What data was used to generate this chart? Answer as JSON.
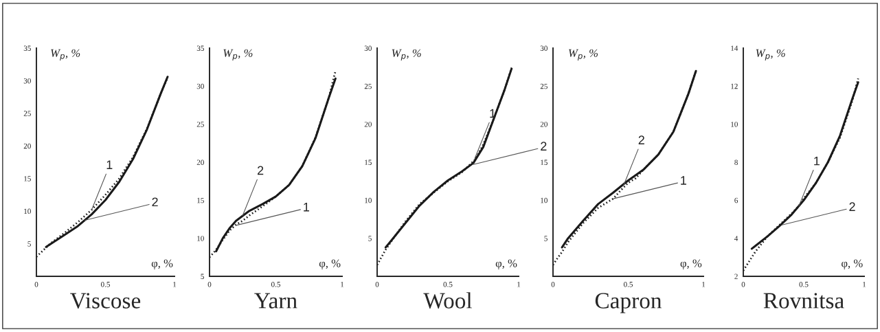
{
  "chart_data": [
    {
      "type": "line",
      "title": "Viscose",
      "xlabel": "φ, %",
      "ylabel": "W$_{p}$, %",
      "xlim": [
        0,
        1
      ],
      "xticks": [
        0,
        0.5,
        1
      ],
      "ylim": [
        0,
        35
      ],
      "yticks": [
        5,
        10,
        15,
        20,
        25,
        30,
        35
      ],
      "grid": false,
      "legend": false,
      "series": [
        {
          "color": "#1a1a1a",
          "line_style": "solid",
          "x": [
            0.07,
            0.2,
            0.3,
            0.4,
            0.5,
            0.6,
            0.7,
            0.8,
            0.9,
            0.95
          ],
          "values": [
            4.5,
            6.3,
            7.7,
            9.5,
            11.7,
            14.5,
            18,
            22.5,
            28,
            30.6
          ]
        },
        {
          "color": "#1a1a1a",
          "line_style": "dotted",
          "x": [
            0.0,
            0.05,
            0.1,
            0.2,
            0.3,
            0.4,
            0.5,
            0.6,
            0.7,
            0.8,
            0.9,
            0.95
          ],
          "values": [
            3,
            4,
            5,
            6.6,
            8.3,
            10.2,
            12.5,
            15,
            18.3,
            22.6,
            28,
            30.5
          ]
        }
      ],
      "annotations": [
        {
          "text": "1",
          "x": 0.4,
          "y": 10.2
        },
        {
          "text": "2",
          "x": 0.35,
          "y": 8.6
        }
      ]
    },
    {
      "type": "line",
      "title": "Yarn",
      "xlabel": "φ, %",
      "ylabel": "W$_{p}$, %",
      "xlim": [
        0,
        1
      ],
      "xticks": [
        0,
        0.5,
        1
      ],
      "ylim": [
        5,
        35
      ],
      "yticks": [
        5,
        10,
        15,
        20,
        25,
        30,
        35
      ],
      "grid": false,
      "legend": false,
      "series": [
        {
          "color": "#1a1a1a",
          "line_style": "solid",
          "x": [
            0.05,
            0.1,
            0.15,
            0.2,
            0.3,
            0.4,
            0.5,
            0.6,
            0.7,
            0.8,
            0.9,
            0.95
          ],
          "values": [
            8.3,
            10,
            11.3,
            12.3,
            13.6,
            14.5,
            15.5,
            17,
            19.5,
            23.2,
            28.5,
            31
          ]
        },
        {
          "color": "#1a1a1a",
          "line_style": "dotted",
          "x": [
            0.0,
            0.05,
            0.1,
            0.15,
            0.2,
            0.25,
            0.3,
            0.4,
            0.5,
            0.6,
            0.7,
            0.8,
            0.9,
            0.95
          ],
          "values": [
            7.5,
            8.5,
            9.8,
            11,
            11.8,
            12.3,
            13,
            14.2,
            15.5,
            17,
            19.5,
            23.3,
            28.5,
            32
          ]
        }
      ],
      "annotations": [
        {
          "text": "2",
          "x": 0.25,
          "y": 13
        },
        {
          "text": "1",
          "x": 0.2,
          "y": 11.7
        }
      ]
    },
    {
      "type": "line",
      "title": "Wool",
      "xlabel": "φ, %",
      "ylabel": "W$_{p}$, %",
      "xlim": [
        0,
        1
      ],
      "xticks": [
        0,
        0.5,
        1
      ],
      "ylim": [
        0,
        30
      ],
      "yticks": [
        5,
        10,
        15,
        20,
        25,
        30
      ],
      "grid": false,
      "legend": false,
      "series": [
        {
          "color": "#1a1a1a",
          "line_style": "solid",
          "x": [
            0.06,
            0.1,
            0.2,
            0.3,
            0.4,
            0.5,
            0.6,
            0.68,
            0.75,
            0.8,
            0.85,
            0.9,
            0.95
          ],
          "values": [
            3.8,
            4.7,
            7,
            9.3,
            11.1,
            12.6,
            13.8,
            14.9,
            17,
            19.5,
            22,
            24.5,
            27.3
          ]
        },
        {
          "color": "#1a1a1a",
          "line_style": "dotted",
          "x": [
            0.0,
            0.03,
            0.06,
            0.1,
            0.2,
            0.3,
            0.4,
            0.5,
            0.6,
            0.69,
            0.75,
            0.8,
            0.85,
            0.9,
            0.95
          ],
          "values": [
            1.5,
            2.5,
            3.5,
            4.6,
            7.2,
            9.5,
            11,
            12.5,
            13.7,
            15.3,
            17.3,
            19.6,
            22,
            24.5,
            27.4
          ]
        }
      ],
      "annotations": [
        {
          "text": "1",
          "x": 0.69,
          "y": 15.5
        },
        {
          "text": "2",
          "x": 0.68,
          "y": 14.7
        }
      ]
    },
    {
      "type": "line",
      "title": "Capron",
      "xlabel": "φ, %",
      "ylabel": "W$_{p}$, %",
      "xlim": [
        0,
        1
      ],
      "xticks": [
        0,
        0.5,
        1
      ],
      "ylim": [
        0,
        30
      ],
      "yticks": [
        5,
        10,
        15,
        20,
        25,
        30
      ],
      "grid": false,
      "legend": false,
      "series": [
        {
          "color": "#1a1a1a",
          "line_style": "solid",
          "x": [
            0.06,
            0.1,
            0.2,
            0.3,
            0.4,
            0.5,
            0.6,
            0.7,
            0.8,
            0.85,
            0.9,
            0.95
          ],
          "values": [
            3.8,
            5,
            7.3,
            9.5,
            11,
            12.6,
            14,
            16,
            19,
            21.5,
            24,
            27
          ]
        },
        {
          "color": "#1a1a1a",
          "line_style": "dotted",
          "x": [
            0.0,
            0.03,
            0.06,
            0.1,
            0.2,
            0.3,
            0.35,
            0.4,
            0.45,
            0.5,
            0.55,
            0.6,
            0.7,
            0.8,
            0.9,
            0.95
          ],
          "values": [
            1.5,
            2.4,
            3.2,
            4.5,
            7,
            9,
            9.6,
            10.2,
            11.3,
            12.3,
            12.9,
            14,
            16,
            19,
            24,
            27
          ]
        }
      ],
      "annotations": [
        {
          "text": "2",
          "x": 0.47,
          "y": 12
        },
        {
          "text": "1",
          "x": 0.4,
          "y": 10.2
        }
      ]
    },
    {
      "type": "line",
      "title": "Rovnitsa",
      "xlabel": "φ, %",
      "ylabel": "W$_{p}$, %",
      "xlim": [
        0,
        1
      ],
      "xticks": [
        0,
        0.5,
        1
      ],
      "ylim": [
        2,
        14
      ],
      "yticks": [
        2,
        4,
        6,
        8,
        10,
        12,
        14
      ],
      "grid": false,
      "legend": false,
      "series": [
        {
          "color": "#1a1a1a",
          "line_style": "solid",
          "x": [
            0.07,
            0.1,
            0.2,
            0.3,
            0.4,
            0.5,
            0.6,
            0.7,
            0.8,
            0.9,
            0.95
          ],
          "values": [
            3.45,
            3.6,
            4.1,
            4.65,
            5.25,
            6.0,
            6.9,
            8.0,
            9.4,
            11.3,
            12.2
          ]
        },
        {
          "color": "#1a1a1a",
          "line_style": "dotted",
          "x": [
            0.0,
            0.03,
            0.06,
            0.1,
            0.15,
            0.2,
            0.3,
            0.4,
            0.46,
            0.5,
            0.6,
            0.7,
            0.8,
            0.9,
            0.95
          ],
          "values": [
            2.3,
            2.6,
            2.9,
            3.3,
            3.7,
            4.1,
            4.7,
            5.3,
            5.7,
            6.1,
            6.9,
            8.0,
            9.3,
            11.2,
            12.4
          ]
        }
      ],
      "annotations": [
        {
          "text": "1",
          "x": 0.46,
          "y": 5.7
        },
        {
          "text": "2",
          "x": 0.32,
          "y": 4.7
        }
      ]
    }
  ]
}
